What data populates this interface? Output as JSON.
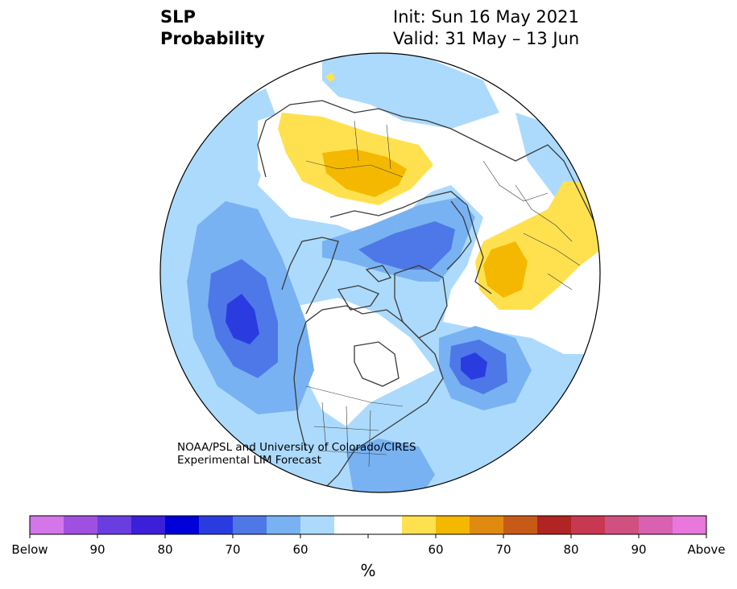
{
  "header": {
    "title_line1": "SLP",
    "title_line2": "Probability",
    "init": "Init: Sun 16 May 2021",
    "valid": "Valid: 31 May – 13 Jun"
  },
  "credit": {
    "line1": "NOAA/PSL and University of Colorado/CIRES",
    "line2": "Experimental LIM Forecast"
  },
  "colorbar": {
    "unit_label": "%",
    "tick_labels": [
      "Below",
      "90",
      "80",
      "70",
      "60",
      "",
      "60",
      "70",
      "80",
      "90",
      "Above"
    ],
    "colors": [
      "#d575ea",
      "#a050e0",
      "#6a3de0",
      "#3c1fd8",
      "#0000d8",
      "#2a3ce0",
      "#4e78e8",
      "#78b2f2",
      "#acdafc",
      "#ffffff",
      "#ffffff",
      "#ffe14f",
      "#f5b800",
      "#e08a10",
      "#c85a18",
      "#b02424",
      "#c83850",
      "#d05080",
      "#da60b0",
      "#e878dc"
    ]
  },
  "map_colors": {
    "blue_60": "#acdafc",
    "blue_65": "#78b2f2",
    "blue_70": "#4e78e8",
    "blue_75": "#2a3ce0",
    "yellow_55": "#ffe14f",
    "yellow_60": "#f5b800",
    "coast": "#3a3a3a"
  }
}
